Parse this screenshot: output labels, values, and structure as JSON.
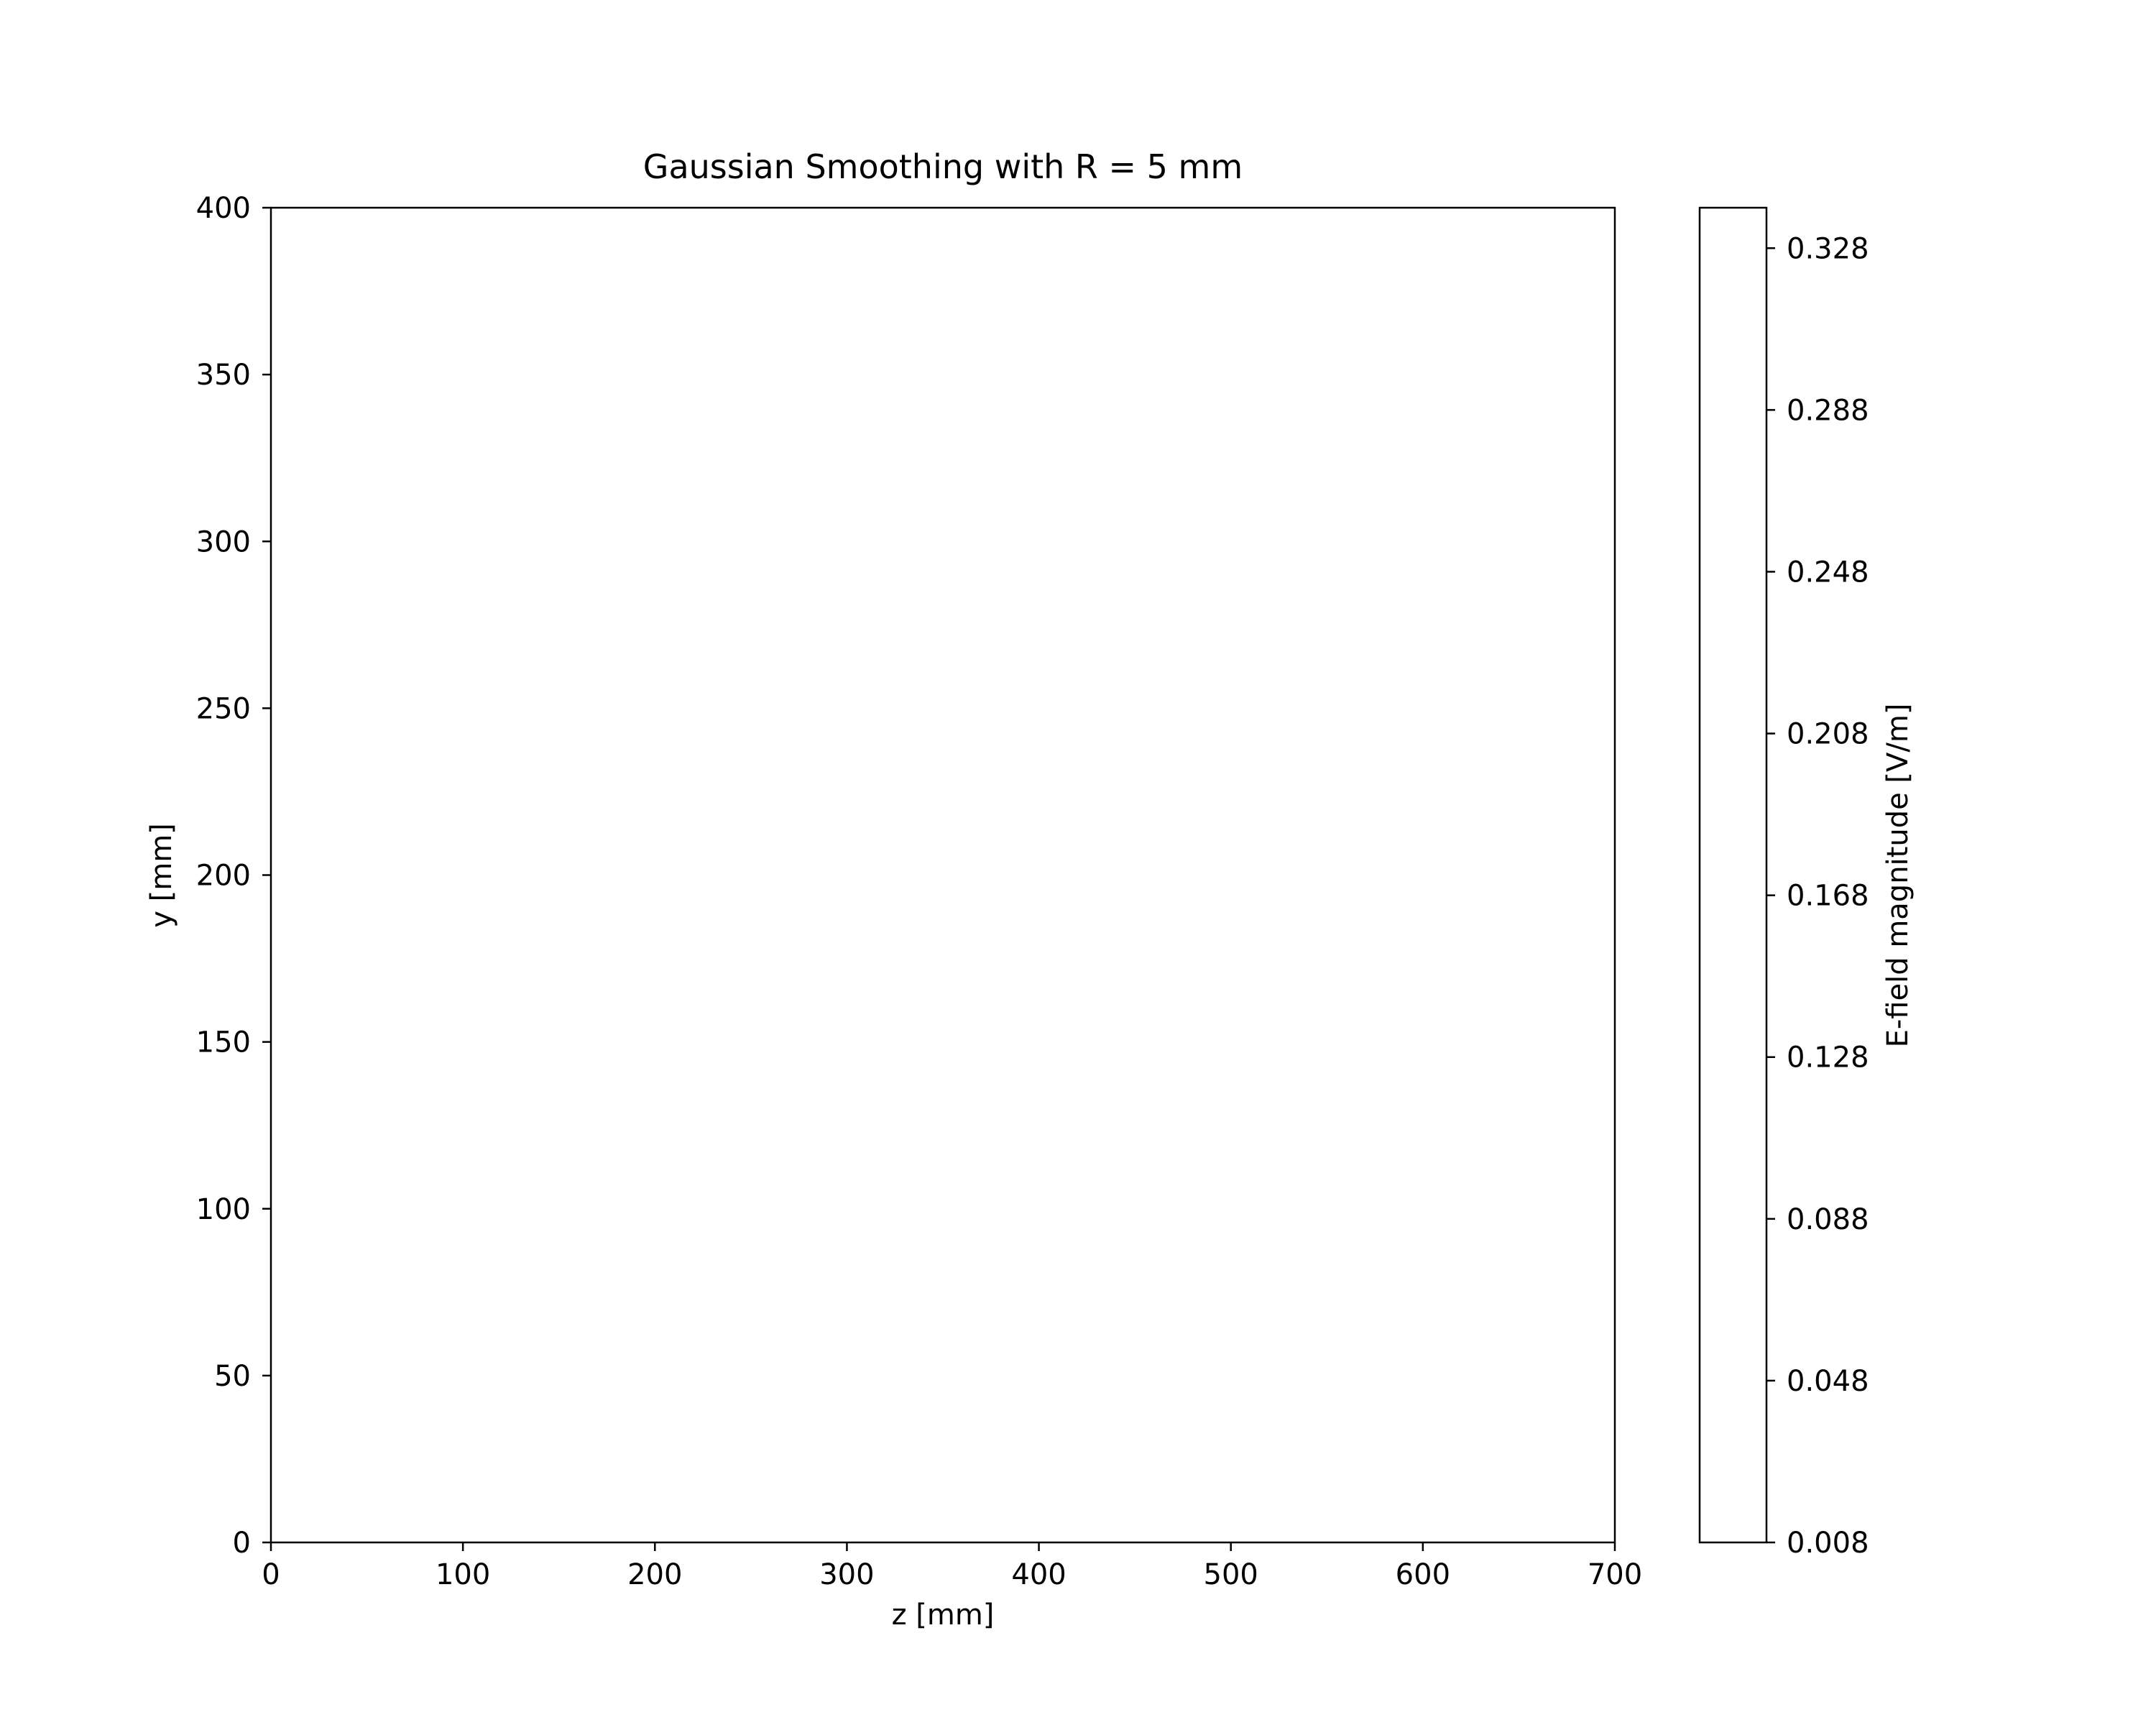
{
  "chart_data": {
    "type": "heatmap",
    "title": "Gaussian Smoothing with R = 5 mm",
    "xlabel": "z [mm]",
    "ylabel": "y [mm]",
    "xlim": [
      0,
      700
    ],
    "ylim": [
      0,
      400
    ],
    "xticks": [
      0,
      100,
      200,
      300,
      400,
      500,
      600,
      700
    ],
    "yticks": [
      0,
      50,
      100,
      150,
      200,
      250,
      300,
      350,
      400
    ],
    "grid": false,
    "colorbar": {
      "label": "E-field magnitude [V/m]",
      "range": [
        0.008,
        0.338
      ],
      "ticks": [
        "0.008",
        "0.048",
        "0.088",
        "0.128",
        "0.168",
        "0.208",
        "0.248",
        "0.288",
        "0.328"
      ],
      "fill_color": "#ffffff"
    },
    "field_color": "#ffffff",
    "axis_color": "#000000"
  }
}
